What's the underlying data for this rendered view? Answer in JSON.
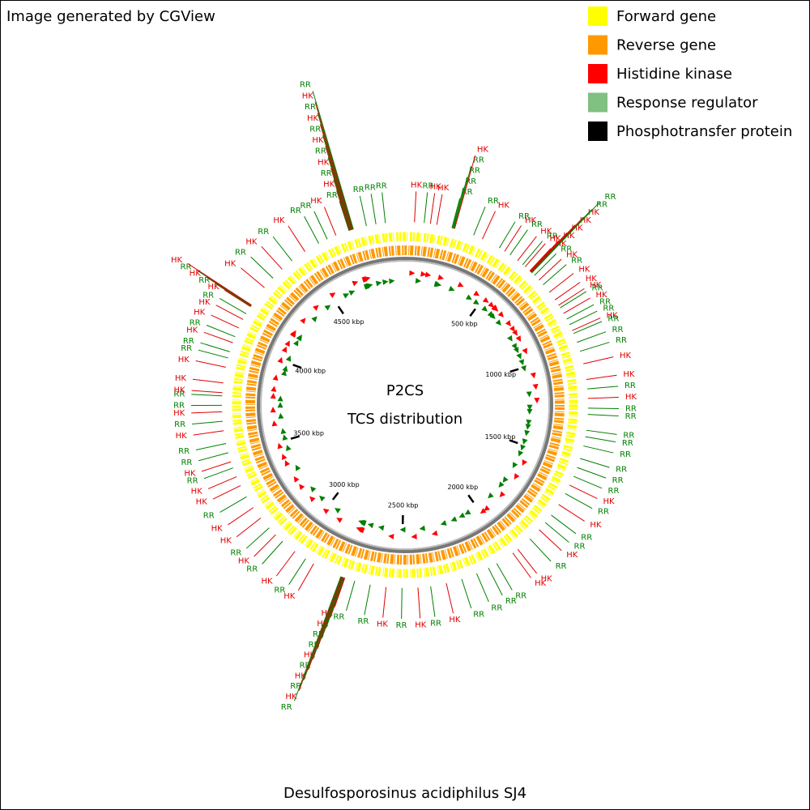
{
  "header": {
    "note": "Image generated by CGView"
  },
  "title": "Desulfosporosinus acidiphilus SJ4",
  "center_labels": [
    "P2CS",
    "TCS distribution"
  ],
  "legend": [
    {
      "label": "Forward gene",
      "color": "#ffff00"
    },
    {
      "label": "Reverse gene",
      "color": "#ff9900"
    },
    {
      "label": "Histidine kinase",
      "color": "#ff0000"
    },
    {
      "label": "Response regulator",
      "color": "#80c080"
    },
    {
      "label": "Phosphotransfer protein",
      "color": "#000000"
    }
  ],
  "map": {
    "xlim": [
      0,
      4970
    ],
    "xticks": [
      {
        "value": 500,
        "label": "500 kbp"
      },
      {
        "value": 1000,
        "label": "1000 kbp"
      },
      {
        "value": 1500,
        "label": "1500 kbp"
      },
      {
        "value": 2000,
        "label": "2000 kbp"
      },
      {
        "value": 2500,
        "label": "2500 kbp"
      },
      {
        "value": 3000,
        "label": "3000 kbp"
      },
      {
        "value": 3500,
        "label": "3500 kbp"
      },
      {
        "value": 4000,
        "label": "4000 kbp"
      },
      {
        "value": 4500,
        "label": "4500 kbp"
      }
    ],
    "label_colors": {
      "HK": "#e00000",
      "RR": "#008000"
    },
    "marker_colors": {
      "HK": "#ff0000",
      "RR": "#008000"
    },
    "features": [
      {
        "label": "HK",
        "position": 41
      },
      {
        "label": "RR",
        "position": 83
      },
      {
        "label": "HK",
        "position": 110
      },
      {
        "label": "HK",
        "position": 138
      },
      {
        "label": "RR",
        "position": 205
      },
      {
        "label": "RR",
        "position": 208
      },
      {
        "label": "RR",
        "position": 211
      },
      {
        "label": "RR",
        "position": 214
      },
      {
        "label": "HK",
        "position": 217
      },
      {
        "label": "RR",
        "position": 304
      },
      {
        "label": "HK",
        "position": 345
      },
      {
        "label": "RR",
        "position": 428
      },
      {
        "label": "HK",
        "position": 455
      },
      {
        "label": "RR",
        "position": 483
      },
      {
        "label": "HK",
        "position": 524
      },
      {
        "label": "RR",
        "position": 552
      },
      {
        "label": "HK",
        "position": 566
      },
      {
        "label": "HK",
        "position": 593
      },
      {
        "label": "HK",
        "position": 595
      },
      {
        "label": "HK",
        "position": 597
      },
      {
        "label": "HK",
        "position": 599
      },
      {
        "label": "HK",
        "position": 601
      },
      {
        "label": "RR",
        "position": 603
      },
      {
        "label": "RR",
        "position": 605
      },
      {
        "label": "RR",
        "position": 621
      },
      {
        "label": "HK",
        "position": 649
      },
      {
        "label": "RR",
        "position": 676
      },
      {
        "label": "HK",
        "position": 718
      },
      {
        "label": "HK",
        "position": 759
      },
      {
        "label": "HK",
        "position": 787
      },
      {
        "label": "RR",
        "position": 800
      },
      {
        "label": "HK",
        "position": 828
      },
      {
        "label": "RR",
        "position": 856
      },
      {
        "label": "RR",
        "position": 883
      },
      {
        "label": "HK",
        "position": 911
      },
      {
        "label": "RR",
        "position": 925
      },
      {
        "label": "RR",
        "position": 966
      },
      {
        "label": "RR",
        "position": 1007
      },
      {
        "label": "HK",
        "position": 1063
      },
      {
        "label": "HK",
        "position": 1132
      },
      {
        "label": "RR",
        "position": 1173
      },
      {
        "label": "HK",
        "position": 1214
      },
      {
        "label": "RR",
        "position": 1256
      },
      {
        "label": "RR",
        "position": 1283
      },
      {
        "label": "RR",
        "position": 1352
      },
      {
        "label": "RR",
        "position": 1380
      },
      {
        "label": "RR",
        "position": 1421
      },
      {
        "label": "RR",
        "position": 1477
      },
      {
        "label": "RR",
        "position": 1518
      },
      {
        "label": "RR",
        "position": 1559
      },
      {
        "label": "HK",
        "position": 1601
      },
      {
        "label": "RR",
        "position": 1642
      },
      {
        "label": "HK",
        "position": 1697
      },
      {
        "label": "RR",
        "position": 1753
      },
      {
        "label": "RR",
        "position": 1794
      },
      {
        "label": "HK",
        "position": 1835
      },
      {
        "label": "RR",
        "position": 1891
      },
      {
        "label": "HK",
        "position": 1960
      },
      {
        "label": "HK",
        "position": 1987
      },
      {
        "label": "RR",
        "position": 2070
      },
      {
        "label": "RR",
        "position": 2111
      },
      {
        "label": "RR",
        "position": 2167
      },
      {
        "label": "RR",
        "position": 2236
      },
      {
        "label": "HK",
        "position": 2305
      },
      {
        "label": "RR",
        "position": 2374
      },
      {
        "label": "HK",
        "position": 2429
      },
      {
        "label": "RR",
        "position": 2498
      },
      {
        "label": "HK",
        "position": 2567
      },
      {
        "label": "RR",
        "position": 2636
      },
      {
        "label": "RR",
        "position": 2705
      },
      {
        "label": "HK",
        "position": 2750
      },
      {
        "label": "HK",
        "position": 2752
      },
      {
        "label": "RR",
        "position": 2754
      },
      {
        "label": "RR",
        "position": 2756
      },
      {
        "label": "HK",
        "position": 2758
      },
      {
        "label": "RR",
        "position": 2760
      },
      {
        "label": "HK",
        "position": 2762
      },
      {
        "label": "RR",
        "position": 2764
      },
      {
        "label": "HK",
        "position": 2766
      },
      {
        "label": "RR",
        "position": 2768
      },
      {
        "label": "HK",
        "position": 2898
      },
      {
        "label": "RR",
        "position": 2939
      },
      {
        "label": "HK",
        "position": 2995
      },
      {
        "label": "RR",
        "position": 3064
      },
      {
        "label": "HK",
        "position": 3105
      },
      {
        "label": "RR",
        "position": 3146
      },
      {
        "label": "HK",
        "position": 3202
      },
      {
        "label": "HK",
        "position": 3257
      },
      {
        "label": "RR",
        "position": 3312
      },
      {
        "label": "HK",
        "position": 3367
      },
      {
        "label": "HK",
        "position": 3409
      },
      {
        "label": "RR",
        "position": 3450
      },
      {
        "label": "HK",
        "position": 3478
      },
      {
        "label": "RR",
        "position": 3519
      },
      {
        "label": "RR",
        "position": 3560
      },
      {
        "label": "HK",
        "position": 3616
      },
      {
        "label": "RR",
        "position": 3657
      },
      {
        "label": "HK",
        "position": 3698
      },
      {
        "label": "RR",
        "position": 3726
      },
      {
        "label": "RR",
        "position": 3767
      },
      {
        "label": "HK",
        "position": 3781
      },
      {
        "label": "HK",
        "position": 3823
      },
      {
        "label": "HK",
        "position": 3892
      },
      {
        "label": "RR",
        "position": 3933
      },
      {
        "label": "RR",
        "position": 3961
      },
      {
        "label": "HK",
        "position": 4002
      },
      {
        "label": "RR",
        "position": 4030
      },
      {
        "label": "HK",
        "position": 4071
      },
      {
        "label": "HK",
        "position": 4112
      },
      {
        "label": "RR",
        "position": 4140
      },
      {
        "label": "HK",
        "position": 4176
      },
      {
        "label": "RR",
        "position": 4178
      },
      {
        "label": "HK",
        "position": 4180
      },
      {
        "label": "RR",
        "position": 4182
      },
      {
        "label": "HK",
        "position": 4184
      },
      {
        "label": "HK",
        "position": 4278
      },
      {
        "label": "RR",
        "position": 4333
      },
      {
        "label": "HK",
        "position": 4388
      },
      {
        "label": "RR",
        "position": 4444
      },
      {
        "label": "HK",
        "position": 4513
      },
      {
        "label": "RR",
        "position": 4582
      },
      {
        "label": "RR",
        "position": 4623
      },
      {
        "label": "HK",
        "position": 4664
      },
      {
        "label": "RR",
        "position": 4724
      },
      {
        "label": "HK",
        "position": 4726
      },
      {
        "label": "RR",
        "position": 4728
      },
      {
        "label": "HK",
        "position": 4730
      },
      {
        "label": "RR",
        "position": 4732
      },
      {
        "label": "HK",
        "position": 4734
      },
      {
        "label": "RR",
        "position": 4736
      },
      {
        "label": "HK",
        "position": 4738
      },
      {
        "label": "RR",
        "position": 4740
      },
      {
        "label": "HK",
        "position": 4742
      },
      {
        "label": "RR",
        "position": 4744
      },
      {
        "label": "RR",
        "position": 4802
      },
      {
        "label": "RR",
        "position": 4844
      },
      {
        "label": "RR",
        "position": 4885
      }
    ]
  }
}
